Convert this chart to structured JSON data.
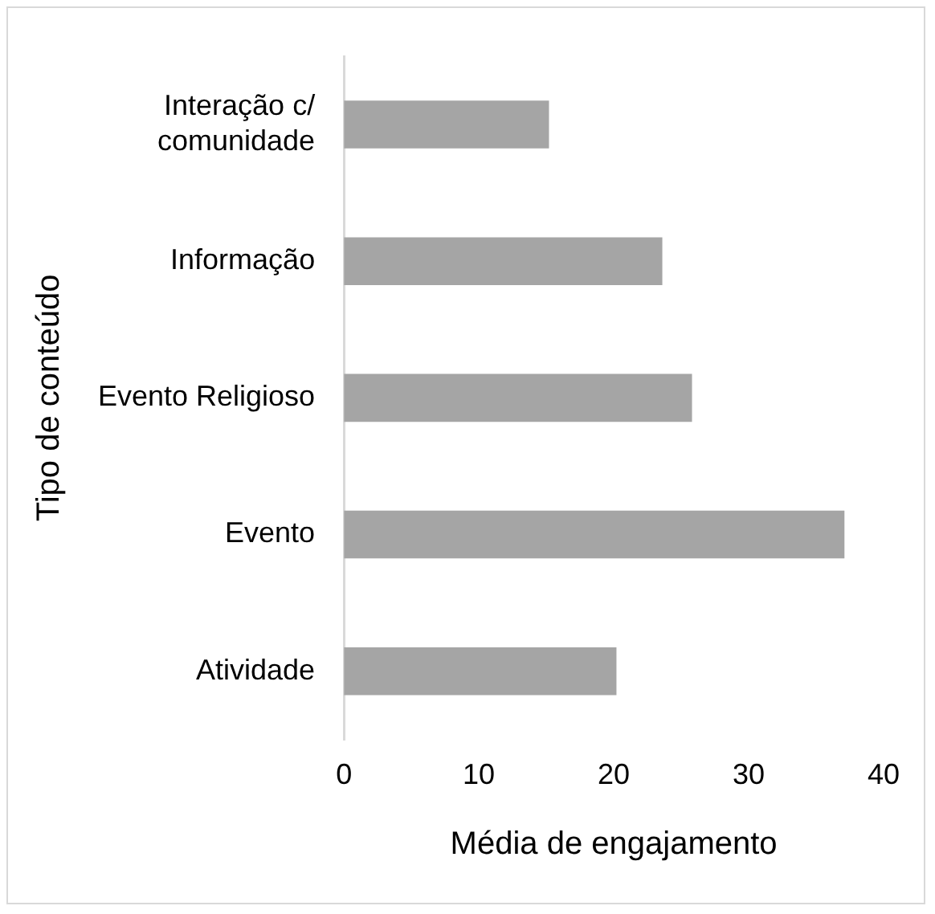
{
  "chart_data": {
    "type": "bar",
    "orientation": "horizontal",
    "xlabel": "Média de engajamento",
    "ylabel": "Tipo de conteúdo",
    "categories": [
      "Interação c/ comunidade",
      "Informação",
      "Evento Religioso",
      "Evento",
      "Atividade"
    ],
    "values": [
      15.2,
      23.6,
      25.8,
      37.1,
      20.2
    ],
    "color": "#a5a5a5",
    "xlim": [
      0,
      40
    ],
    "xticks": [
      0,
      10,
      20,
      30,
      40
    ],
    "grid": false,
    "legend": false
  }
}
